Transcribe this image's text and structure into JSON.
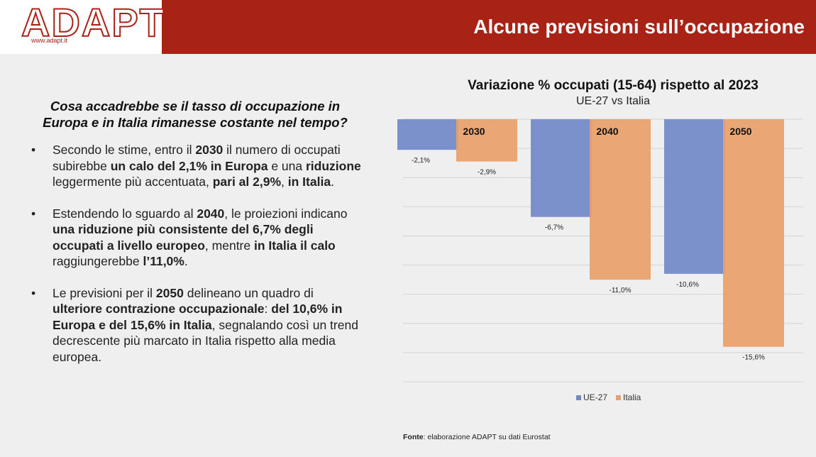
{
  "header": {
    "logo_text": "ADAPT",
    "logo_url": "www.adapt.it",
    "title": "Alcune previsioni sull’occupazione"
  },
  "left": {
    "question": "Cosa accadrebbe se il tasso di occupazione in Europa e in Italia rimanesse costante nel tempo?",
    "bullet_symbol": "•",
    "bullets": [
      [
        {
          "t": "Secondo le stime, entro il ",
          "b": false
        },
        {
          "t": "2030",
          "b": true
        },
        {
          "t": " il numero di occupati subirebbe ",
          "b": false
        },
        {
          "t": "un calo del 2,1% in Europa",
          "b": true
        },
        {
          "t": " e una ",
          "b": false
        },
        {
          "t": "riduzione",
          "b": true
        },
        {
          "t": " leggermente più accentuata, ",
          "b": false
        },
        {
          "t": "pari al 2,9%",
          "b": true
        },
        {
          "t": ", ",
          "b": false
        },
        {
          "t": "in Italia",
          "b": true
        },
        {
          "t": ".",
          "b": false
        }
      ],
      [
        {
          "t": "Estendendo lo sguardo al ",
          "b": false
        },
        {
          "t": "2040",
          "b": true
        },
        {
          "t": ", le proiezioni indicano ",
          "b": false
        },
        {
          "t": "una riduzione più consistente del 6,7% degli occupati a livello europeo",
          "b": true
        },
        {
          "t": ", mentre ",
          "b": false
        },
        {
          "t": "in Italia il calo",
          "b": true
        },
        {
          "t": " raggiungerebbe ",
          "b": false
        },
        {
          "t": "l’11,0%",
          "b": true
        },
        {
          "t": ".",
          "b": false
        }
      ],
      [
        {
          "t": "Le previsioni per il ",
          "b": false
        },
        {
          "t": "2050",
          "b": true
        },
        {
          "t": " delineano un quadro di ",
          "b": false
        },
        {
          "t": "ulteriore contrazione occupazionale",
          "b": true
        },
        {
          "t": ": ",
          "b": false
        },
        {
          "t": "del 10,6% in Europa e del 15,6% in Italia",
          "b": true
        },
        {
          "t": ", segnalando così un trend decrescente più marcato in Italia rispetto alla media europea.",
          "b": false
        }
      ]
    ]
  },
  "chart_data": {
    "type": "bar",
    "title": "Variazione % occupati (15-64) rispetto al 2023",
    "subtitle": "UE-27 vs Italia",
    "categories": [
      "2030",
      "2040",
      "2050"
    ],
    "series": [
      {
        "name": "UE-27",
        "values": [
          -2.1,
          -6.7,
          -10.6
        ],
        "labels": [
          "-2,1%",
          "-6,7%",
          "-10,6%"
        ],
        "color": "#7189c9"
      },
      {
        "name": "Italia",
        "values": [
          -2.9,
          -11.0,
          -15.6
        ],
        "labels": [
          "-2,9%",
          "-11,0%",
          "-15,6%"
        ],
        "color": "#e9a06a"
      }
    ],
    "ylim": [
      -18,
      0
    ],
    "grid": true,
    "legend": "bottom"
  },
  "source": {
    "label": "Fonte",
    "text": ": elaborazione ADAPT su dati Eurostat"
  }
}
